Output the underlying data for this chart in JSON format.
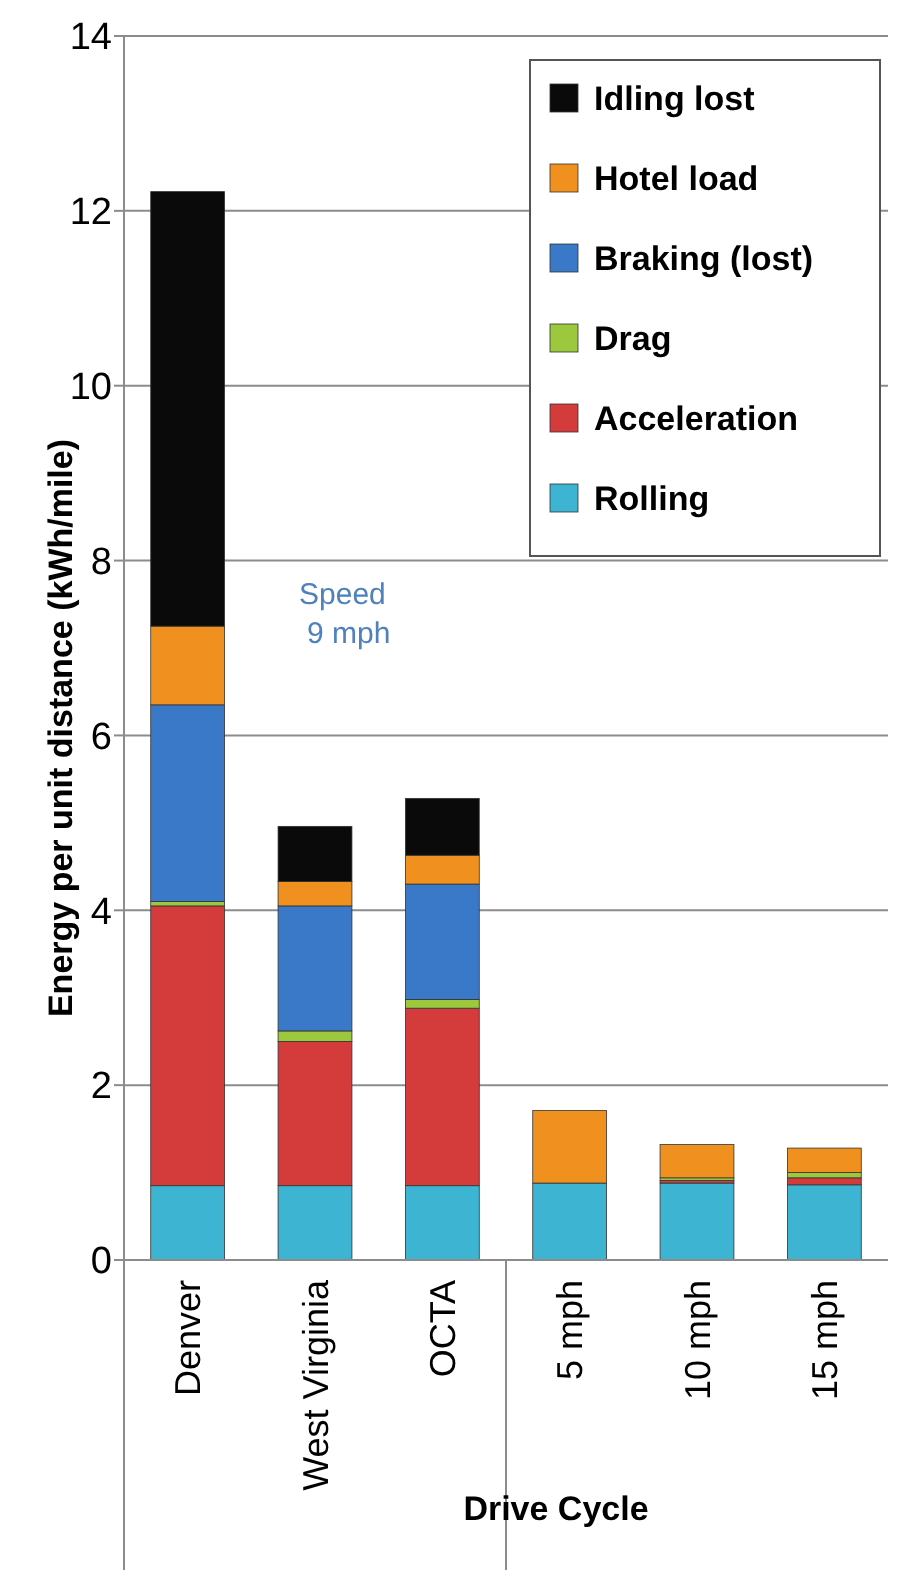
{
  "chart_data": {
    "type": "bar",
    "stacked": true,
    "xlabel": "Drive Cycle",
    "ylabel": "Energy per unit distance (kWh/mile)",
    "categories": [
      "Denver",
      "West Virginia",
      "OCTA",
      "5 mph",
      "10 mph",
      "15 mph"
    ],
    "ylim": [
      0,
      14
    ],
    "yticks": [
      0,
      2,
      4,
      6,
      8,
      10,
      12,
      14
    ],
    "grid": "y",
    "legend": "top right",
    "annotations": [
      "Speed\n9 mph"
    ],
    "series": [
      {
        "name": "Rolling",
        "color": "#3cb4d2",
        "values": [
          0.85,
          0.85,
          0.85,
          0.88,
          0.88,
          0.86
        ]
      },
      {
        "name": "Acceleration",
        "color": "#d43c3c",
        "values": [
          3.2,
          1.65,
          2.03,
          null,
          0.03,
          0.08
        ]
      },
      {
        "name": "Drag",
        "color": "#9bc83c",
        "values": [
          0.05,
          0.12,
          0.1,
          null,
          0.03,
          0.06
        ]
      },
      {
        "name": "Braking (lost)",
        "color": "#3a78c8",
        "values": [
          2.25,
          1.43,
          1.32,
          null,
          null,
          null
        ]
      },
      {
        "name": "Hotel load",
        "color": "#f0901e",
        "values": [
          0.9,
          0.28,
          0.33,
          0.83,
          0.38,
          0.28
        ]
      },
      {
        "name": "Idling lost",
        "color": "#0a0a0a",
        "values": [
          4.97,
          0.63,
          0.65,
          null,
          null,
          null
        ]
      }
    ]
  }
}
